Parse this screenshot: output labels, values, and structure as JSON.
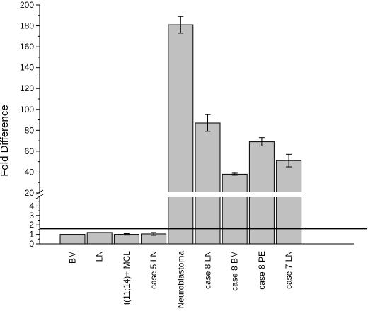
{
  "chart_data": {
    "type": "bar",
    "ylabel": "Fold Difference",
    "xlabel": "",
    "categories": [
      "BM",
      "LN",
      "t(11;14)+ MCL",
      "case 5 LN",
      "Neuroblastoma",
      "case 8 LN",
      "case 8 BM",
      "case 8 PE",
      "case 7 LN"
    ],
    "values": [
      1.0,
      1.2,
      1.0,
      1.05,
      181,
      87,
      38,
      69,
      51
    ],
    "errors": [
      0,
      0,
      0.08,
      0.15,
      8,
      8,
      1,
      4,
      6
    ],
    "y_axis_broken": true,
    "y_lower_range": [
      0,
      5
    ],
    "y_lower_ticks": [
      0,
      1,
      2,
      3,
      4
    ],
    "y_upper_range": [
      20,
      200
    ],
    "y_upper_ticks": [
      20,
      40,
      60,
      80,
      100,
      120,
      140,
      160,
      180,
      200
    ],
    "threshold_line": 1.6,
    "bar_color": "#c0c0c0",
    "grid": false
  }
}
